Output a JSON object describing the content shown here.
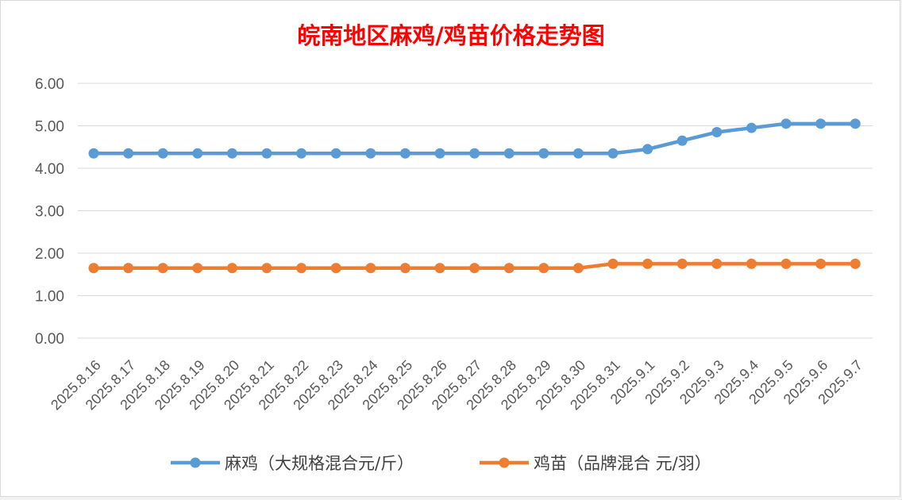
{
  "chart_data": {
    "type": "line",
    "title": "皖南地区麻鸡/鸡苗价格走势图",
    "title_color": "#ff0000",
    "categories": [
      "2025.8.16",
      "2025.8.17",
      "2025.8.18",
      "2025.8.19",
      "2025.8.20",
      "2025.8.21",
      "2025.8.22",
      "2025.8.23",
      "2025.8.24",
      "2025.8.25",
      "2025.8.26",
      "2025.8.27",
      "2025.8.28",
      "2025.8.29",
      "2025.8.30",
      "2025.8.31",
      "2025.9.1",
      "2025.9.2",
      "2025.9.3",
      "2025.9.4",
      "2025.9.5",
      "2025.9.6",
      "2025.9.7"
    ],
    "y_ticks": [
      "0.00",
      "1.00",
      "2.00",
      "3.00",
      "4.00",
      "5.00",
      "6.00"
    ],
    "ylim": [
      0,
      6
    ],
    "grid": true,
    "legend_position": "bottom",
    "series": [
      {
        "name": "麻鸡（大规格混合元/斤）",
        "color": "#5b9bd5",
        "values": [
          4.35,
          4.35,
          4.35,
          4.35,
          4.35,
          4.35,
          4.35,
          4.35,
          4.35,
          4.35,
          4.35,
          4.35,
          4.35,
          4.35,
          4.35,
          4.35,
          4.45,
          4.65,
          4.85,
          4.95,
          5.05,
          5.05,
          5.05
        ]
      },
      {
        "name": "鸡苗（品牌混合 元/羽）",
        "color": "#ed7d31",
        "values": [
          1.65,
          1.65,
          1.65,
          1.65,
          1.65,
          1.65,
          1.65,
          1.65,
          1.65,
          1.65,
          1.65,
          1.65,
          1.65,
          1.65,
          1.65,
          1.75,
          1.75,
          1.75,
          1.75,
          1.75,
          1.75,
          1.75,
          1.75
        ]
      }
    ]
  }
}
